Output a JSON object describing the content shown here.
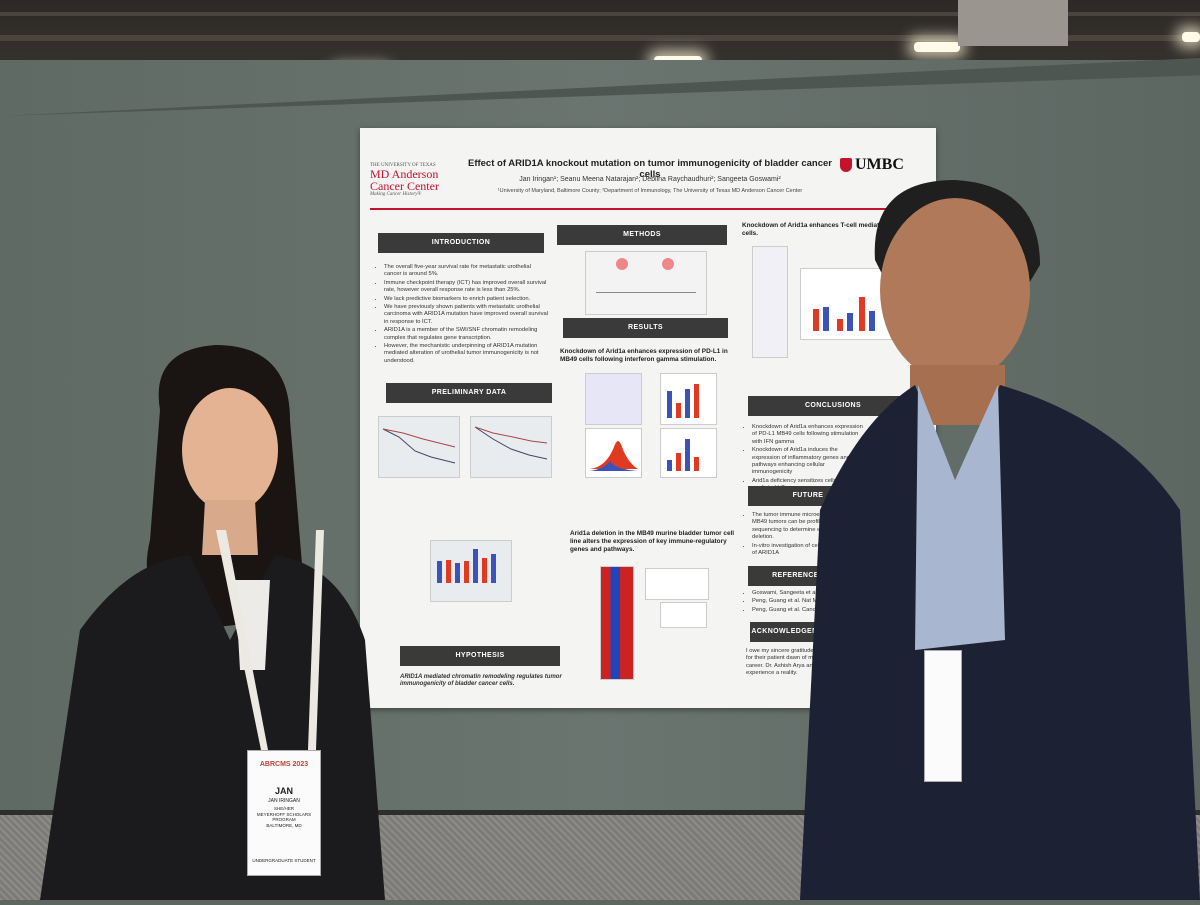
{
  "poster": {
    "title": "Effect of ARID1A knockout mutation on tumor immunogenicity of bladder cancer cells",
    "authors": "Jan Iringan¹; Seanu Meena Natarajan²; Deblina Raychaudhuri²; Sangeeta Goswami²",
    "affiliations": "¹University of Maryland, Baltimore County; ²Department of Immunology, The University of Texas MD Anderson Cancer Center",
    "logo_left_line1": "THE UNIVERSITY OF TEXAS",
    "logo_left_line2": "MD Anderson",
    "logo_left_line3": "Cancer Center",
    "logo_left_tagline": "Making Cancer History®",
    "logo_right": "UMBC",
    "sections": {
      "introduction": "INTRODUCTION",
      "preliminary": "PRELIMINARY DATA",
      "hypothesis": "HYPOTHESIS",
      "methods": "METHODS",
      "results": "RESULTS",
      "conclusions": "CONCLUSIONS",
      "future": "FUTURE",
      "references": "REFERENCES",
      "acknowledgements": "ACKNOWLEDGEMENTS"
    },
    "intro_bullets": [
      "The overall five-year survival rate for metastatic urothelial cancer is around 5%.",
      "Immune checkpoint therapy (ICT) has improved overall survival rate, however overall response rate is less than 25%.",
      "We lack predictive biomarkers to enrich patient selection.",
      "We have previously shown patients with metastatic urothelial carcinoma with ARID1A mutation have improved overall survival in response to ICT.",
      "ARID1A is a member of the SWI/SNF chromatin remodeling complex that regulates gene transcription.",
      "However, the mechanistic underpinning of ARID1A mutation mediated alteration of urothelial tumor immunogenicity is not understood."
    ],
    "hypothesis_text": "ARID1A mediated chromatin remodeling regulates tumor immunogenicity of bladder cancer cells.",
    "results_heading_1": "Knockdown of Arid1a enhances expression of PD-L1 in MB49 cells following interferon gamma stimulation.",
    "results_heading_2": "Arid1a deletion in the MB49 murine bladder tumor cell line alters the expression of key immune-regulatory genes and pathways.",
    "results_heading_3": "Knockdown of Arid1a enhances T-cell mediated MB49 cells.",
    "conclusion_bullets": [
      "Knockdown of Arid1a enhances expression of PD-L1 MB49 cells following stimulation with IFN gamma",
      "Knockdown of Arid1a induces the expression of inflammatory genes and pathways enhancing cellular immunogenicity",
      "Arid1a deficiency sensitizes cells to T-cell mediated killing"
    ],
    "future_bullets": [
      "The tumor immune microenvironment of MB49 tumors can be profiled by RNA sequencing to determine effects of ARID1A deletion.",
      "In-vitro investigation of cells following loss of ARID1A"
    ],
    "references": [
      "Goswami, Sangeeta et al.",
      "Peng, Guang et al. Nat M",
      "Peng, Guang et al. Canc"
    ],
    "acknowledgements_text": "I owe my sincere gratitude to members for their patient dawn of my research career. Dr. Ashish Arya and Dr. E experience a reality."
  },
  "badge": {
    "event": "ABRCMS 2023",
    "first_name": "JAN",
    "full_name": "JAN IRINGAN",
    "pronouns": "SHE/HER",
    "affiliation": "MEYERHOFF SCHOLARS PROGRAM",
    "location": "BALTIMORE, MD",
    "role": "UNDERGRADUATE STUDENT"
  },
  "colors": {
    "poster_red": "#c4122f",
    "header_dark": "#3a3a3a",
    "lanyard": "#e8e6e0",
    "jacket": "#1b1f2c",
    "wall": "#66706b"
  },
  "chart_bars": {
    "fig_c_series": [
      0.6,
      0.65,
      0.55,
      0.62,
      0.95,
      0.7,
      0.8
    ],
    "fig_b_series": [
      0.7,
      0.4,
      0.75,
      0.9
    ],
    "fig_d_series": [
      0.3,
      0.5,
      0.9,
      0.4
    ]
  }
}
